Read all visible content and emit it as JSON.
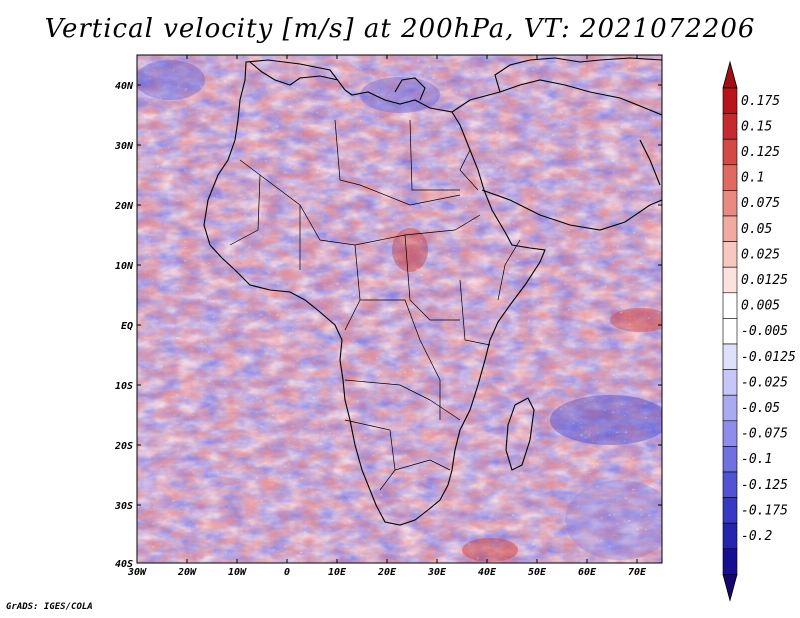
{
  "title": "Vertical velocity [m/s] at 200hPa, VT: 2021072206",
  "credit": "GrADS: IGES/COLA",
  "lon_ticks": [
    "30W",
    "20W",
    "10W",
    "0",
    "10E",
    "20E",
    "30E",
    "40E",
    "50E",
    "60E",
    "70E"
  ],
  "lat_ticks": [
    "40N",
    "30N",
    "20N",
    "10N",
    "EQ",
    "10S",
    "20S",
    "30S",
    "40S"
  ],
  "colorbar": {
    "labels": [
      "0.175",
      "0.15",
      "0.125",
      "0.1",
      "0.075",
      "0.05",
      "0.025",
      "0.0125",
      "0.005",
      "-0.005",
      "-0.0125",
      "-0.025",
      "-0.05",
      "-0.075",
      "-0.1",
      "-0.125",
      "-0.175",
      "-0.2"
    ],
    "colors": [
      "#b8141c",
      "#c52a2e",
      "#d24a46",
      "#df6a62",
      "#e88a80",
      "#f0aaa0",
      "#f6c8c0",
      "#fbe2dc",
      "#ffffff",
      "#ffffff",
      "#e0e0fb",
      "#c6c6f7",
      "#aaaaf1",
      "#8e8eea",
      "#7070e0",
      "#5252d4",
      "#3838c2",
      "#2424ad",
      "#180e92"
    ],
    "top_arrow_color": "#a01012",
    "bottom_arrow_color": "#140870"
  }
}
